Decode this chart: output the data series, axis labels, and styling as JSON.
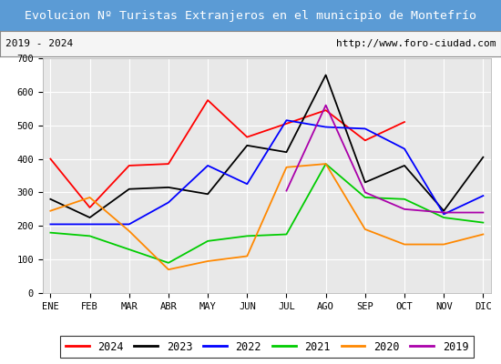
{
  "title": "Evolucion Nº Turistas Extranjeros en el municipio de Montefrío",
  "subtitle_left": "2019 - 2024",
  "subtitle_right": "http://www.foro-ciudad.com",
  "title_bg_color": "#5b9bd5",
  "title_text_color": "white",
  "subtitle_bg_color": "#f5f5f5",
  "subtitle_text_color": "black",
  "plot_bg_color": "#e8e8e8",
  "months": [
    "ENE",
    "FEB",
    "MAR",
    "ABR",
    "MAY",
    "JUN",
    "JUL",
    "AGO",
    "SEP",
    "OCT",
    "NOV",
    "DIC"
  ],
  "ylim": [
    0,
    700
  ],
  "yticks": [
    0,
    100,
    200,
    300,
    400,
    500,
    600,
    700
  ],
  "series": {
    "2024": {
      "color": "#ff0000",
      "data": [
        400,
        255,
        380,
        385,
        575,
        465,
        505,
        545,
        455,
        510,
        null,
        null
      ]
    },
    "2023": {
      "color": "#000000",
      "data": [
        280,
        225,
        310,
        315,
        295,
        440,
        420,
        650,
        330,
        380,
        245,
        405
      ]
    },
    "2022": {
      "color": "#0000ff",
      "data": [
        205,
        205,
        205,
        270,
        380,
        325,
        515,
        495,
        490,
        430,
        235,
        290
      ]
    },
    "2021": {
      "color": "#00cc00",
      "data": [
        180,
        170,
        130,
        90,
        155,
        170,
        175,
        385,
        285,
        280,
        225,
        210
      ]
    },
    "2020": {
      "color": "#ff8800",
      "data": [
        245,
        285,
        185,
        70,
        95,
        110,
        375,
        385,
        190,
        145,
        145,
        175
      ]
    },
    "2019": {
      "color": "#aa00aa",
      "data": [
        null,
        null,
        null,
        null,
        null,
        null,
        305,
        560,
        300,
        250,
        240,
        240
      ]
    }
  },
  "legend_order": [
    "2024",
    "2023",
    "2022",
    "2021",
    "2020",
    "2019"
  ],
  "grid_color": "white",
  "tick_fontsize": 7.5,
  "font_family": "monospace"
}
